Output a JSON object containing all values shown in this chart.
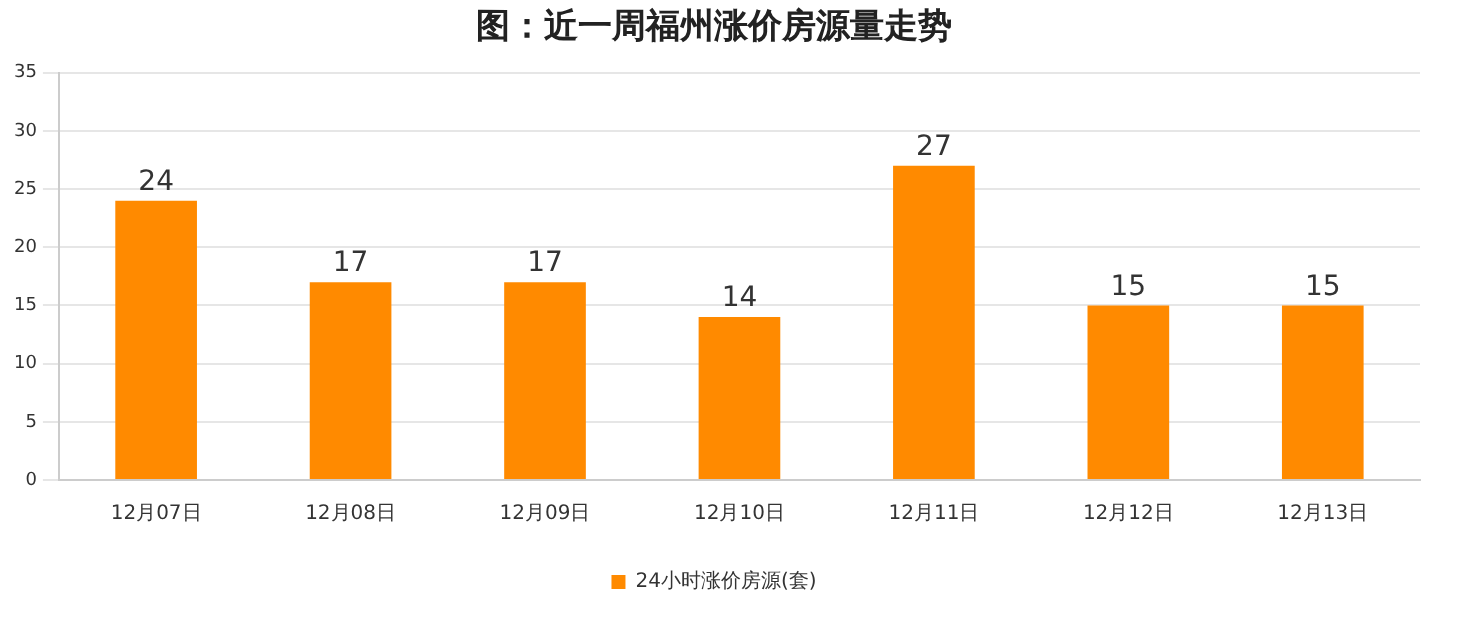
{
  "chart_data": {
    "type": "bar",
    "title": "图：近一周福州涨价房源量走势",
    "categories": [
      "12月07日",
      "12月08日",
      "12月09日",
      "12月10日",
      "12月11日",
      "12月12日",
      "12月13日"
    ],
    "series": [
      {
        "name": "24小时涨价房源(套)",
        "color": "#ff8a00",
        "values": [
          24,
          17,
          17,
          14,
          27,
          15,
          15
        ]
      }
    ],
    "ylim": [
      0,
      35
    ],
    "yticks": [
      0,
      5,
      10,
      15,
      20,
      25,
      30,
      35
    ],
    "grid": "y",
    "legend": "bottom",
    "data_labels": true
  }
}
